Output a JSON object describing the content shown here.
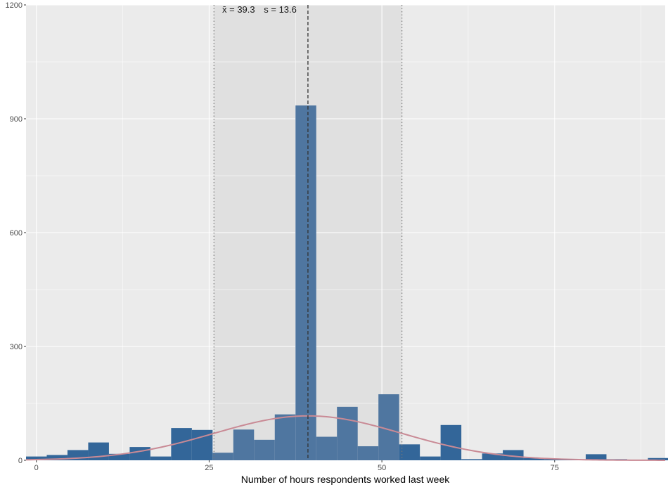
{
  "chart_data": {
    "type": "bar",
    "title": "",
    "xlabel": "Number of hours respondents worked last week",
    "ylabel": "",
    "xlim": [
      -1.5,
      91
    ],
    "ylim": [
      0,
      1200
    ],
    "x_ticks": [
      0,
      25,
      50,
      75
    ],
    "x_tick_labels": [
      "0",
      "25",
      "50",
      "75"
    ],
    "y_ticks": [
      0,
      300,
      600,
      900,
      1200
    ],
    "y_tick_labels": [
      "0",
      "300",
      "600",
      "900",
      "1200"
    ],
    "grid": true,
    "bin_width": 3,
    "bins": [
      {
        "x0": -1.5,
        "count": 10
      },
      {
        "x0": 1.5,
        "count": 14
      },
      {
        "x0": 4.5,
        "count": 27
      },
      {
        "x0": 7.5,
        "count": 47
      },
      {
        "x0": 10.5,
        "count": 17
      },
      {
        "x0": 13.5,
        "count": 35
      },
      {
        "x0": 16.5,
        "count": 10
      },
      {
        "x0": 19.5,
        "count": 85
      },
      {
        "x0": 22.5,
        "count": 80
      },
      {
        "x0": 25.5,
        "count": 20
      },
      {
        "x0": 28.5,
        "count": 81
      },
      {
        "x0": 31.5,
        "count": 54
      },
      {
        "x0": 34.5,
        "count": 121
      },
      {
        "x0": 37.5,
        "count": 935
      },
      {
        "x0": 40.5,
        "count": 62
      },
      {
        "x0": 43.5,
        "count": 141
      },
      {
        "x0": 46.5,
        "count": 37
      },
      {
        "x0": 49.5,
        "count": 174
      },
      {
        "x0": 52.5,
        "count": 42
      },
      {
        "x0": 55.5,
        "count": 10
      },
      {
        "x0": 58.5,
        "count": 93
      },
      {
        "x0": 61.5,
        "count": 3
      },
      {
        "x0": 64.5,
        "count": 18
      },
      {
        "x0": 67.5,
        "count": 27
      },
      {
        "x0": 70.5,
        "count": 6
      },
      {
        "x0": 73.5,
        "count": 3
      },
      {
        "x0": 76.5,
        "count": 1
      },
      {
        "x0": 79.5,
        "count": 16
      },
      {
        "x0": 82.5,
        "count": 3
      },
      {
        "x0": 85.5,
        "count": 1
      },
      {
        "x0": 88.5,
        "count": 6
      }
    ],
    "mean": 39.3,
    "sd": 13.6,
    "sd_band": [
      25.7,
      52.9
    ],
    "normal_curve_peak": 117,
    "annotation_mean_label": "x̄ = 39.3",
    "annotation_sd_label": "s = 13.6",
    "colors": {
      "panel_bg": "#ebebeb",
      "band_bg": "#e0e0e0",
      "grid_major": "#ffffff",
      "bar_outside": "#336699",
      "bar_inside": "#4f76a0",
      "curve": "#c98a95",
      "ref_line": "#333333"
    }
  }
}
